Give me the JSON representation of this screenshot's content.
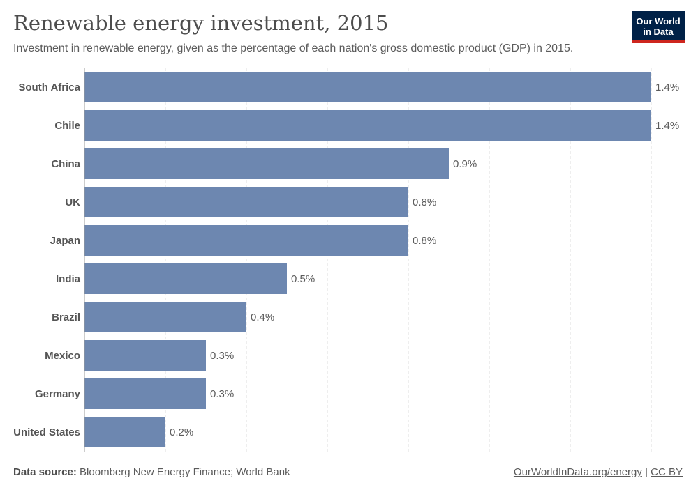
{
  "header": {
    "title": "Renewable energy investment, 2015",
    "subtitle": "Investment in renewable energy, given as the percentage of each nation's gross domestic product (GDP) in 2015."
  },
  "logo": {
    "line1": "Our World",
    "line2": "in Data",
    "bg_color": "#002147",
    "accent_color": "#ce261e"
  },
  "footer": {
    "source_label": "Data source:",
    "source_text": "Bloomberg New Energy Finance; World Bank",
    "link_text": "OurWorldInData.org/energy",
    "separator": "|",
    "license_text": "CC BY"
  },
  "chart_data": {
    "type": "bar",
    "orientation": "horizontal",
    "categories": [
      "South Africa",
      "Chile",
      "China",
      "UK",
      "Japan",
      "India",
      "Brazil",
      "Mexico",
      "Germany",
      "United States"
    ],
    "values": [
      1.4,
      1.4,
      0.9,
      0.8,
      0.8,
      0.5,
      0.4,
      0.3,
      0.3,
      0.2
    ],
    "value_labels": [
      "1.4%",
      "1.4%",
      "0.9%",
      "0.8%",
      "0.8%",
      "0.5%",
      "0.4%",
      "0.3%",
      "0.3%",
      "0.2%"
    ],
    "xlim": [
      0,
      1.4
    ],
    "gridlines": [
      0.2,
      0.4,
      0.6,
      0.8,
      1.0,
      1.2,
      1.4
    ],
    "grid": true,
    "bar_color": "#6d87b0",
    "title": "Renewable energy investment, 2015",
    "xlabel": "",
    "ylabel": ""
  }
}
